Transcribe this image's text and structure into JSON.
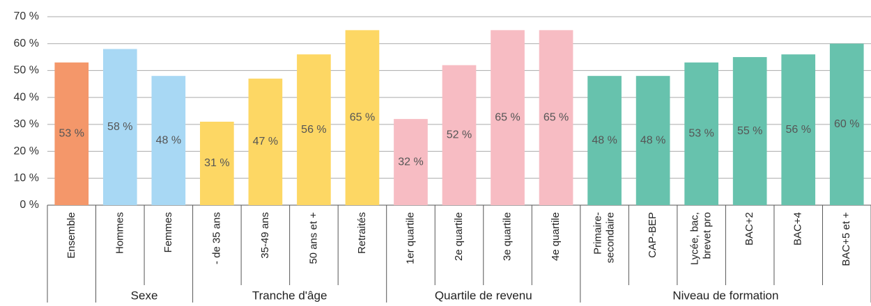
{
  "chart_data": {
    "type": "bar",
    "ylim": [
      0,
      70
    ],
    "yticks": [
      {
        "value": 0,
        "label": "0 %"
      },
      {
        "value": 10,
        "label": "10 %"
      },
      {
        "value": 20,
        "label": "20 %"
      },
      {
        "value": 30,
        "label": "30 %"
      },
      {
        "value": 40,
        "label": "40 %"
      },
      {
        "value": 50,
        "label": "50 %"
      },
      {
        "value": 60,
        "label": "60 %"
      },
      {
        "value": 70,
        "label": "70 %"
      }
    ],
    "grid": true,
    "groups": [
      {
        "name": null,
        "color": "#f4976a",
        "categories": [
          "Ensemble"
        ],
        "values": [
          53
        ],
        "value_labels": [
          "53 %"
        ]
      },
      {
        "name": "Sexe",
        "color": "#a8d8f4",
        "categories": [
          "Hommes",
          "Femmes"
        ],
        "values": [
          58,
          48
        ],
        "value_labels": [
          "58 %",
          "48 %"
        ]
      },
      {
        "name": "Tranche d'âge",
        "color": "#fdd764",
        "categories": [
          "- de 35 ans",
          "35-49 ans",
          "50 ans et +",
          "Retraités"
        ],
        "values": [
          31,
          47,
          56,
          65
        ],
        "value_labels": [
          "31 %",
          "47 %",
          "56 %",
          "65 %"
        ]
      },
      {
        "name": "Quartile de revenu",
        "color": "#f7bcc3",
        "categories": [
          "1er quartile",
          "2e quartile",
          "3e quartile",
          "4e quartile"
        ],
        "values": [
          32,
          52,
          65,
          65
        ],
        "value_labels": [
          "32 %",
          "52 %",
          "65 %",
          "65 %"
        ]
      },
      {
        "name": "Niveau de formation",
        "color": "#67c2ad",
        "categories": [
          "Primaire-\nsecondaire",
          "CAP-BEP",
          "Lycée, bac,\nbrevet pro",
          "BAC+2",
          "BAC+4",
          "BAC+5 et +"
        ],
        "values": [
          48,
          48,
          53,
          55,
          56,
          60
        ],
        "value_labels": [
          "48 %",
          "48 %",
          "53 %",
          "55 %",
          "56 %",
          "60 %"
        ]
      }
    ]
  }
}
